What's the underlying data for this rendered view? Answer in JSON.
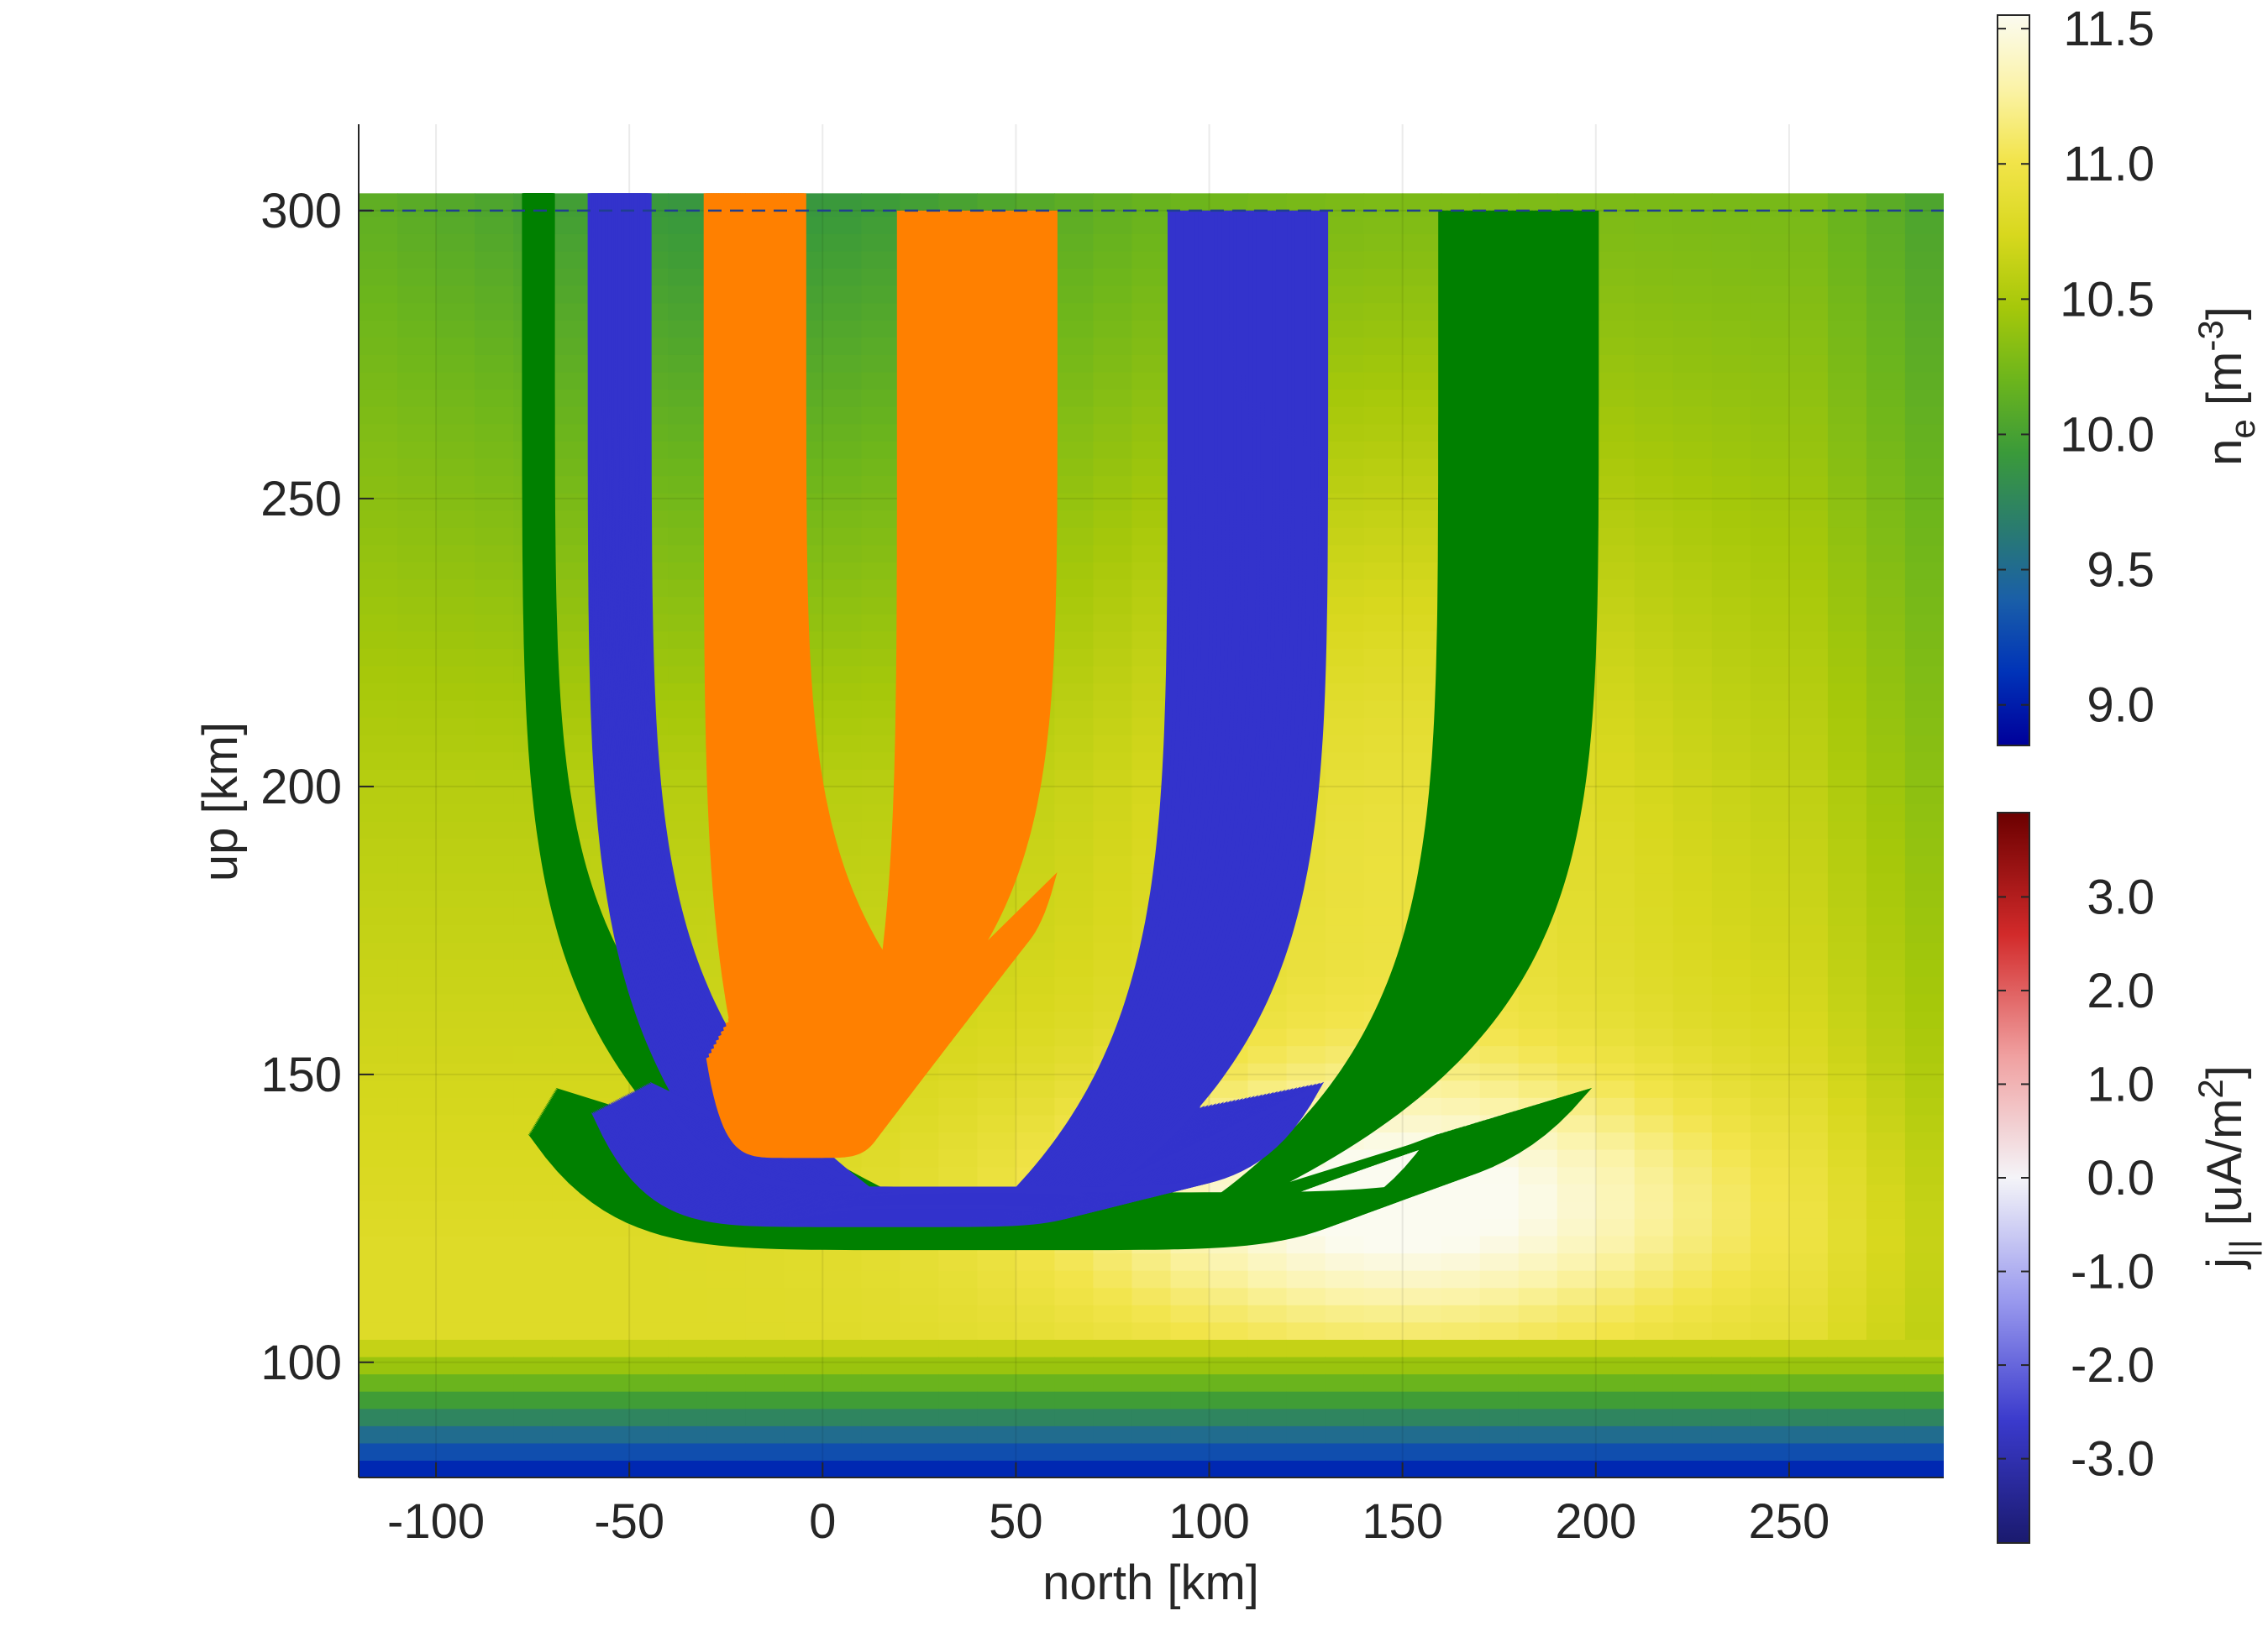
{
  "chart_data": {
    "type": "heatmap",
    "xlabel": "north [km]",
    "ylabel": "up [km]",
    "xlim": [
      -120,
      290
    ],
    "ylim": [
      80,
      315
    ],
    "xticks": [
      -100,
      -50,
      0,
      50,
      100,
      150,
      200,
      250
    ],
    "yticks": [
      100,
      150,
      200,
      250,
      300
    ],
    "grid": true,
    "reference_line": {
      "y": 300,
      "style": "dashed",
      "color": "#1f3f8f"
    },
    "background": {
      "quantity": "log10 electron density",
      "colorbar_ticks": [
        "11.5",
        "11.0",
        "10.5",
        "10.0",
        "9.5",
        "9.0"
      ],
      "colorbar_range": [
        8.85,
        11.55
      ],
      "colormap": [
        "#00009a",
        "#0033b8",
        "#1a5fa8",
        "#2a7c6e",
        "#3a9a3a",
        "#6cb51c",
        "#a6c80a",
        "#d8d81e",
        "#f2e44a",
        "#fbf3a8",
        "#fbfbf0"
      ],
      "top_km": 303
    },
    "colorbar_ne": {
      "label_main": "n",
      "label_sub": "e",
      "label_unit_pre": " [m",
      "label_unit_sup": "-3",
      "label_unit_post": "]"
    },
    "colorbar_j": {
      "label_main": "j",
      "label_sub": "||",
      "label_unit_pre": " [uA/m",
      "label_unit_sup": "2",
      "label_unit_post": "]",
      "ticks": [
        "3.0",
        "2.0",
        "1.0",
        "0.0",
        "-1.0",
        "-2.0",
        "-3.0"
      ],
      "tick_values": [
        3,
        2,
        1,
        0,
        -1,
        -2,
        -3
      ],
      "range": [
        -3.9,
        3.9
      ],
      "colormap": [
        "#1a1a6e",
        "#3a3acc",
        "#9a9aee",
        "#f4f4f8",
        "#f0a0a0",
        "#d22a2a",
        "#6b0000"
      ]
    },
    "series": [
      {
        "color": "#008000",
        "left_x": [
          -77,
          -70
        ],
        "right_x": [
          160,
          200
        ],
        "bottom_km": [
          120,
          129
        ],
        "top_km": 300,
        "left_top_km": 303
      },
      {
        "color": "#3333cc",
        "left_x": [
          -60,
          -45
        ],
        "right_x": [
          90,
          130
        ],
        "bottom_km": [
          124,
          130
        ],
        "top_km": 300,
        "left_top_km": 303
      },
      {
        "color": "#ff8000",
        "left_x": [
          -30,
          -5
        ],
        "right_x": [
          20,
          60
        ],
        "bottom_km": [
          136,
          170
        ],
        "top_km": 300,
        "left_top_km": 303
      }
    ]
  }
}
